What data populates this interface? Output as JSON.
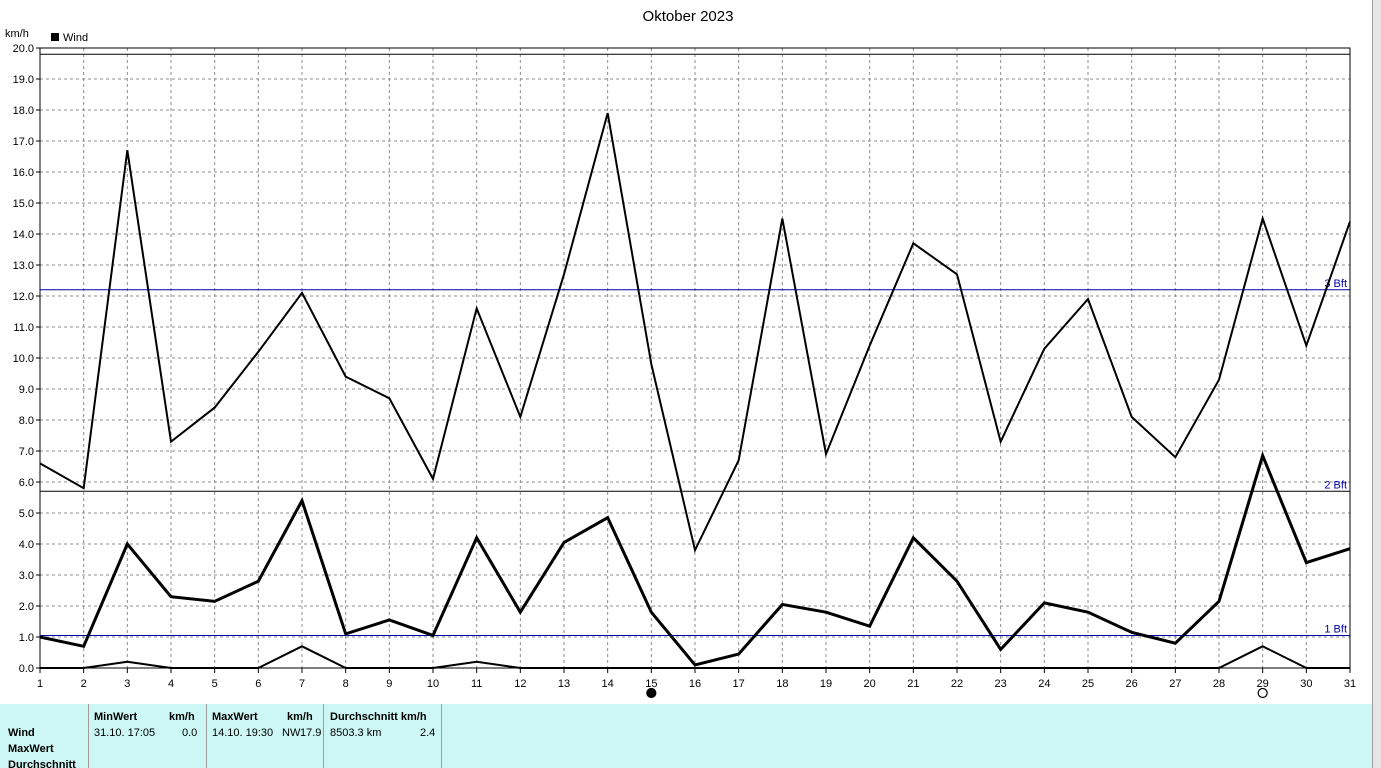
{
  "chart_data": {
    "type": "line",
    "title": "Oktober 2023",
    "ylabel": "km/h",
    "ylim": [
      0,
      20
    ],
    "yticks": [
      "0.0",
      "1.0",
      "2.0",
      "3.0",
      "4.0",
      "5.0",
      "6.0",
      "7.0",
      "8.0",
      "9.0",
      "10.0",
      "11.0",
      "12.0",
      "13.0",
      "14.0",
      "15.0",
      "16.0",
      "17.0",
      "18.0",
      "19.0",
      "20.0"
    ],
    "x": [
      "1",
      "2",
      "3",
      "4",
      "5",
      "6",
      "7",
      "8",
      "9",
      "10",
      "11",
      "12",
      "13",
      "14",
      "15",
      "16",
      "17",
      "18",
      "19",
      "20",
      "21",
      "22",
      "23",
      "24",
      "25",
      "26",
      "27",
      "28",
      "29",
      "30",
      "31"
    ],
    "grid": true,
    "legend": {
      "label": "Wind",
      "position": "top-left"
    },
    "series": [
      {
        "name": "MaxWert",
        "values": [
          6.6,
          5.8,
          16.7,
          7.3,
          8.4,
          10.2,
          12.1,
          9.4,
          8.7,
          6.1,
          11.6,
          8.1,
          12.7,
          17.9,
          9.8,
          3.8,
          6.7,
          14.5,
          6.9,
          10.4,
          13.7,
          12.7,
          7.3,
          10.3,
          11.9,
          8.1,
          6.8,
          9.3,
          14.5,
          10.4,
          14.4
        ]
      },
      {
        "name": "Durchschnitt",
        "values": [
          1.0,
          0.7,
          4.0,
          2.3,
          2.15,
          2.8,
          5.4,
          1.1,
          1.55,
          1.05,
          4.2,
          1.8,
          4.05,
          4.85,
          1.8,
          0.1,
          0.45,
          2.05,
          1.8,
          1.35,
          4.2,
          2.8,
          0.6,
          2.1,
          1.8,
          1.15,
          0.8,
          2.15,
          6.85,
          3.4,
          3.85
        ]
      },
      {
        "name": "MinWert",
        "values": [
          0,
          0,
          0.2,
          0,
          0,
          0,
          0.7,
          0,
          0,
          0,
          0.2,
          0,
          0,
          0,
          0,
          0,
          0,
          0,
          0,
          0,
          0,
          0,
          0,
          0,
          0,
          0,
          0,
          0,
          0.7,
          0,
          0
        ]
      }
    ],
    "reference_lines": [
      {
        "label": "3 Bft",
        "value": 12.2,
        "color": "#0000a8"
      },
      {
        "label": "2 Bft",
        "value": 5.7,
        "color": "#000000"
      },
      {
        "label": "1 Bft",
        "value": 1.05,
        "color": "#0000a8"
      },
      {
        "label": "",
        "value": 19.8,
        "color": "#000000"
      }
    ],
    "moon_phases": [
      {
        "day": "15",
        "phase": "new"
      },
      {
        "day": "29",
        "phase": "full"
      }
    ]
  },
  "table": {
    "row_labels": [
      "Wind",
      "MaxWert",
      "Durchschnitt"
    ],
    "min": {
      "header": "MinWert",
      "unit": "km/h",
      "when": "31.10.  17:05",
      "value": "0.0"
    },
    "max": {
      "header": "MaxWert",
      "unit": "km/h",
      "when": "14.10.  19:30",
      "dir": "NW",
      "value": "17.9"
    },
    "avg": {
      "header": "Durchschnitt km/h",
      "distance": "8503.3 km",
      "value": "2.4"
    }
  }
}
